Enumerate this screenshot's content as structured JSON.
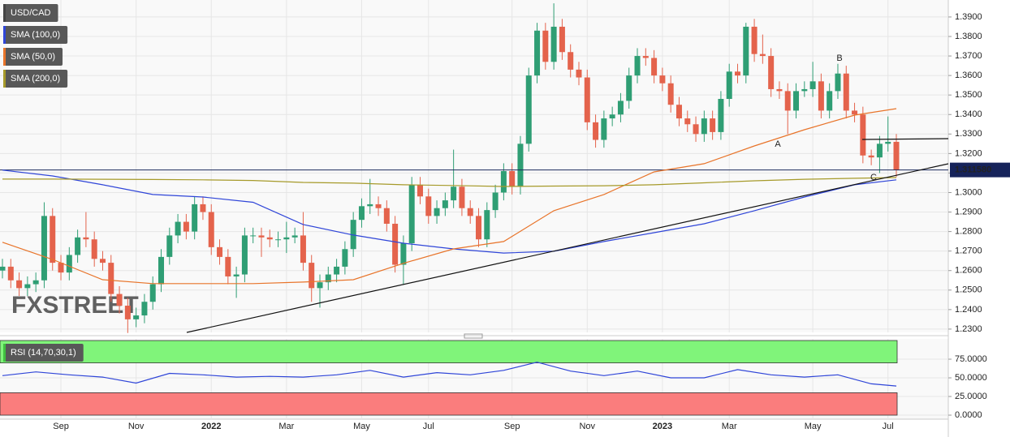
{
  "chart_data": [
    {
      "type": "candlestick",
      "categories": [
        null,
        null,
        null,
        null,
        null,
        null,
        null,
        "Sep",
        null,
        null,
        null,
        null,
        null,
        null,
        null,
        null,
        "Nov",
        null,
        null,
        null,
        null,
        null,
        null,
        null,
        null,
        "2022",
        null,
        null,
        null,
        null,
        null,
        null,
        null,
        null,
        "Mar",
        null,
        null,
        null,
        null,
        null,
        null,
        null,
        null,
        "May",
        null,
        null,
        null,
        null,
        null,
        null,
        null,
        "Jul",
        null,
        null,
        null,
        null,
        null,
        null,
        null,
        null,
        null,
        "Sep",
        null,
        null,
        null,
        null,
        null,
        null,
        null,
        null,
        "Nov",
        null,
        null,
        null,
        null,
        null,
        null,
        null,
        null,
        "2023",
        null,
        null,
        null,
        null,
        null,
        null,
        null,
        "Mar",
        null,
        null,
        null,
        null,
        null,
        null,
        null,
        null,
        null,
        "May",
        null,
        null,
        null,
        null,
        null,
        null,
        null,
        null,
        "Jul",
        null
      ],
      "series": [
        {
          "name": "USD/CAD",
          "up_color": "#2f9e74",
          "down_color": "#e4634c",
          "open": [
            1.26,
            1.262,
            1.255,
            1.251,
            1.253,
            1.255,
            1.288,
            1.264,
            1.259,
            1.268,
            1.277,
            1.276,
            1.266,
            1.264,
            1.248,
            1.242,
            1.235,
            1.237,
            1.244,
            1.253,
            1.267,
            1.278,
            1.285,
            1.28,
            1.294,
            1.29,
            1.272,
            1.267,
            1.257,
            1.258,
            1.278,
            1.278,
            1.277,
            1.276,
            1.276,
            1.277,
            1.278,
            1.264,
            1.251,
            1.254,
            1.258,
            1.262,
            1.271,
            1.286,
            1.293,
            1.294,
            1.292,
            1.284,
            1.263,
            1.274,
            1.304,
            1.298,
            1.288,
            1.292,
            1.296,
            1.303,
            1.292,
            1.288,
            1.276,
            1.291,
            1.3,
            1.311,
            1.303,
            1.325,
            1.36,
            1.383,
            1.367,
            1.385,
            1.372,
            1.363,
            1.359,
            1.336,
            1.327,
            1.338,
            1.34,
            1.347,
            1.36,
            1.37,
            1.369,
            1.36,
            1.356,
            1.345,
            1.338,
            1.335,
            1.33,
            1.338,
            1.331,
            1.348,
            1.362,
            1.36,
            1.385,
            1.371,
            1.37,
            1.353,
            1.352,
            1.342,
            1.352,
            1.353,
            1.357,
            1.342,
            1.352,
            1.361,
            1.342,
            1.34,
            1.319,
            1.318,
            1.325,
            1.326
          ],
          "high": [
            1.266,
            1.266,
            1.259,
            1.257,
            1.259,
            1.295,
            1.292,
            1.268,
            1.272,
            1.281,
            1.29,
            1.28,
            1.27,
            1.268,
            1.252,
            1.246,
            1.241,
            1.248,
            1.257,
            1.271,
            1.282,
            1.289,
            1.289,
            1.298,
            1.298,
            1.294,
            1.276,
            1.271,
            1.262,
            1.282,
            1.282,
            1.282,
            1.281,
            1.28,
            1.285,
            1.282,
            1.29,
            1.268,
            1.258,
            1.262,
            1.266,
            1.275,
            1.29,
            1.297,
            1.307,
            1.298,
            1.296,
            1.288,
            1.278,
            1.308,
            1.308,
            1.302,
            1.296,
            1.3,
            1.322,
            1.307,
            1.296,
            1.292,
            1.295,
            1.304,
            1.315,
            1.315,
            1.329,
            1.364,
            1.387,
            1.387,
            1.397,
            1.389,
            1.376,
            1.367,
            1.363,
            1.34,
            1.342,
            1.344,
            1.351,
            1.364,
            1.374,
            1.374,
            1.373,
            1.364,
            1.36,
            1.349,
            1.342,
            1.339,
            1.342,
            1.342,
            1.352,
            1.366,
            1.366,
            1.387,
            1.389,
            1.381,
            1.374,
            1.357,
            1.356,
            1.356,
            1.357,
            1.367,
            1.361,
            1.356,
            1.366,
            1.365,
            1.346,
            1.344,
            1.322,
            1.329,
            1.339,
            1.33
          ],
          "low": [
            1.256,
            1.251,
            1.247,
            1.247,
            1.249,
            1.251,
            1.26,
            1.255,
            1.255,
            1.264,
            1.272,
            1.262,
            1.26,
            1.244,
            1.238,
            1.228,
            1.231,
            1.233,
            1.24,
            1.249,
            1.263,
            1.274,
            1.276,
            1.276,
            1.286,
            1.268,
            1.263,
            1.253,
            1.246,
            1.254,
            1.274,
            1.267,
            1.272,
            1.272,
            1.269,
            1.274,
            1.26,
            1.244,
            1.241,
            1.25,
            1.254,
            1.258,
            1.267,
            1.282,
            1.289,
            1.288,
            1.28,
            1.259,
            1.253,
            1.27,
            1.294,
            1.284,
            1.284,
            1.288,
            1.292,
            1.288,
            1.284,
            1.272,
            1.272,
            1.287,
            1.296,
            1.299,
            1.299,
            1.321,
            1.356,
            1.363,
            1.363,
            1.368,
            1.359,
            1.355,
            1.332,
            1.323,
            1.323,
            1.334,
            1.336,
            1.343,
            1.356,
            1.365,
            1.356,
            1.352,
            1.341,
            1.334,
            1.331,
            1.326,
            1.326,
            1.327,
            1.327,
            1.344,
            1.356,
            1.356,
            1.367,
            1.366,
            1.349,
            1.348,
            1.33,
            1.338,
            1.349,
            1.349,
            1.338,
            1.338,
            1.348,
            1.338,
            1.336,
            1.315,
            1.314,
            1.31,
            1.321,
            1.308
          ],
          "close": [
            1.262,
            1.255,
            1.251,
            1.253,
            1.255,
            1.288,
            1.264,
            1.259,
            1.268,
            1.277,
            1.276,
            1.266,
            1.264,
            1.248,
            1.242,
            1.235,
            1.237,
            1.244,
            1.253,
            1.267,
            1.278,
            1.285,
            1.28,
            1.294,
            1.29,
            1.272,
            1.267,
            1.257,
            1.258,
            1.278,
            1.278,
            1.277,
            1.276,
            1.276,
            1.277,
            1.278,
            1.264,
            1.251,
            1.254,
            1.258,
            1.262,
            1.271,
            1.286,
            1.293,
            1.294,
            1.292,
            1.284,
            1.263,
            1.274,
            1.304,
            1.298,
            1.288,
            1.292,
            1.296,
            1.303,
            1.292,
            1.288,
            1.276,
            1.291,
            1.3,
            1.311,
            1.303,
            1.325,
            1.36,
            1.383,
            1.367,
            1.385,
            1.372,
            1.363,
            1.359,
            1.336,
            1.327,
            1.338,
            1.34,
            1.347,
            1.36,
            1.37,
            1.369,
            1.36,
            1.356,
            1.345,
            1.338,
            1.335,
            1.33,
            1.338,
            1.331,
            1.348,
            1.362,
            1.36,
            1.385,
            1.371,
            1.37,
            1.353,
            1.352,
            1.342,
            1.352,
            1.353,
            1.357,
            1.342,
            1.352,
            1.361,
            1.342,
            1.34,
            1.319,
            1.318,
            1.325,
            1.326,
            1.31158
          ],
          "last_label": "1.311580"
        },
        {
          "name": "SMA (100,0)",
          "color": "#2f45d8",
          "x": [
            0,
            6,
            12,
            18,
            24,
            30,
            36,
            42,
            48,
            54,
            60,
            66,
            72,
            78,
            84,
            90,
            96,
            102,
            107
          ],
          "values": [
            1.3115,
            1.3085,
            1.304,
            1.299,
            1.2977,
            1.295,
            1.2836,
            1.2782,
            1.274,
            1.2711,
            1.269,
            1.2699,
            1.2749,
            1.2794,
            1.284,
            1.2907,
            1.2977,
            1.304,
            1.3065
          ]
        },
        {
          "name": "SMA (50,0)",
          "color": "#e8742a",
          "x": [
            0,
            6,
            12,
            18,
            24,
            30,
            36,
            42,
            48,
            54,
            60,
            66,
            72,
            78,
            84,
            90,
            96,
            102,
            107
          ],
          "values": [
            1.2745,
            1.2657,
            1.2553,
            1.2533,
            1.2533,
            1.2533,
            1.2541,
            1.2553,
            1.2637,
            1.2711,
            1.2749,
            1.2907,
            1.299,
            1.3106,
            1.3148,
            1.3239,
            1.3322,
            1.3397,
            1.343
          ]
        },
        {
          "name": "SMA (200,0)",
          "color": "#a69a2a",
          "x": [
            0,
            6,
            12,
            18,
            24,
            30,
            36,
            42,
            48,
            54,
            60,
            66,
            72,
            78,
            84,
            90,
            96,
            102,
            107
          ],
          "values": [
            1.3069,
            1.3069,
            1.3068,
            1.3067,
            1.3065,
            1.3062,
            1.3052,
            1.3048,
            1.304,
            1.3036,
            1.3031,
            1.3033,
            1.3035,
            1.304,
            1.305,
            1.306,
            1.3068,
            1.3073,
            1.3077
          ]
        }
      ],
      "annotations": [
        {
          "text": "A"
        },
        {
          "text": "B"
        },
        {
          "text": "C"
        }
      ],
      "watermark": "FXSTREET",
      "ylim": [
        1.2283,
        1.3987
      ],
      "yticks": [
        {
          "value": 1.23,
          "label": "1.2300"
        },
        {
          "value": 1.24,
          "label": "1.2400"
        },
        {
          "value": 1.25,
          "label": "1.2500"
        },
        {
          "value": 1.26,
          "label": "1.2600"
        },
        {
          "value": 1.27,
          "label": "1.2700"
        },
        {
          "value": 1.28,
          "label": "1.2800"
        },
        {
          "value": 1.29,
          "label": "1.2900"
        },
        {
          "value": 1.3,
          "label": "1.3000"
        },
        {
          "value": 1.31,
          "label": "1.3100"
        },
        {
          "value": 1.32,
          "label": "1.3200"
        },
        {
          "value": 1.33,
          "label": "1.3300"
        },
        {
          "value": 1.34,
          "label": "1.3400"
        },
        {
          "value": 1.35,
          "label": "1.3500"
        },
        {
          "value": 1.36,
          "label": "1.3600"
        },
        {
          "value": 1.37,
          "label": "1.3700"
        },
        {
          "value": 1.38,
          "label": "1.3800"
        },
        {
          "value": 1.39,
          "label": "1.3900"
        }
      ],
      "grid": true
    },
    {
      "type": "line",
      "series": [
        {
          "name": "RSI (14,70,30,1)",
          "color": "#2f45d8",
          "x": [
            0,
            4,
            8,
            12,
            16,
            20,
            24,
            28,
            32,
            36,
            40,
            44,
            48,
            52,
            56,
            60,
            64,
            68,
            72,
            76,
            80,
            84,
            88,
            92,
            96,
            100,
            104,
            107
          ],
          "values": [
            53,
            58,
            54,
            51,
            43,
            56,
            54,
            51,
            52,
            51,
            54,
            60,
            51,
            57,
            54,
            60,
            71,
            59,
            53,
            59,
            50,
            50,
            61,
            54,
            51,
            54,
            42,
            39
          ]
        }
      ],
      "bands": [
        {
          "from": 70,
          "to": 100,
          "color": "#80f47a"
        },
        {
          "from": 0,
          "to": 30,
          "color": "#fa7d7d"
        }
      ],
      "ylim": [
        -5.4,
        102.2
      ],
      "yticks": [
        {
          "value": 0,
          "label": "0.0000"
        },
        {
          "value": 25,
          "label": "25.0000"
        },
        {
          "value": 50,
          "label": "50.0000"
        },
        {
          "value": 75,
          "label": "75.0000"
        }
      ],
      "grid": true
    }
  ]
}
